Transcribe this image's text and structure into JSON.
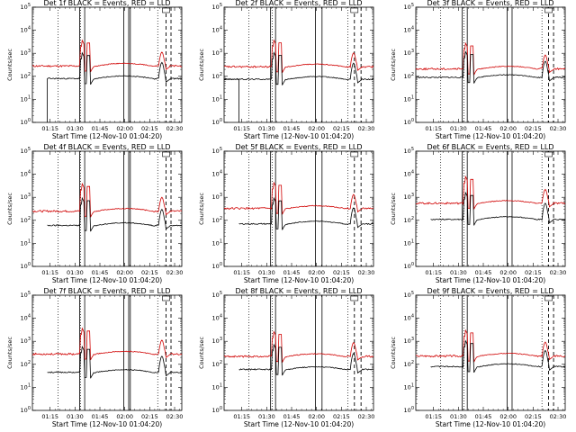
{
  "colors": {
    "events": "#000000",
    "lld": "#d00000",
    "axis": "#000000"
  },
  "shared": {
    "ylabel": "Counts/sec",
    "xlabel": "Start Time (12-Nov-10 01:04:20)",
    "xticks": [
      "01:15",
      "01:30",
      "01:45",
      "02:00",
      "02:15",
      "02:30"
    ],
    "ytick_bases": [
      "10",
      "10",
      "10",
      "10",
      "10",
      "10"
    ],
    "ytick_exps": [
      "0",
      "1",
      "2",
      "3",
      "4",
      "5"
    ]
  },
  "chart_data": [
    {
      "type": "line",
      "title": "Det 1f BLACK = Events, RED = LLD",
      "xlabel": "Start Time (12-Nov-10 01:04:20)",
      "ylabel": "Counts/sec",
      "ylim": [
        1,
        100000
      ],
      "yscale": "log",
      "black_base": 80,
      "red_base": 280,
      "black_start_min": 9,
      "spike_scale": 1.0,
      "black_gap": true,
      "solid_lines_min": [
        28.5,
        31.5,
        55,
        58,
        59
      ],
      "dotted_lines_min": [
        15.5,
        29,
        75.5
      ],
      "dashed_lines_min": [
        80.5,
        83.5
      ],
      "series": [
        {
          "name": "Events",
          "color": "#000000"
        },
        {
          "name": "LLD",
          "color": "#d00000"
        }
      ]
    },
    {
      "type": "line",
      "title": "Det 2f BLACK = Events, RED = LLD",
      "xlabel": "Start Time (12-Nov-10 01:04:20)",
      "ylabel": "Counts/sec",
      "ylim": [
        1,
        100000
      ],
      "yscale": "log",
      "black_base": 75,
      "red_base": 260,
      "black_start_min": 0,
      "spike_scale": 1.1,
      "black_gap": true,
      "solid_lines_min": [
        28,
        31,
        55,
        59
      ],
      "dotted_lines_min": [
        15,
        29,
        74.5
      ],
      "dashed_lines_min": [
        78.5,
        82.5
      ],
      "series": [
        {
          "name": "Events",
          "color": "#000000"
        },
        {
          "name": "LLD",
          "color": "#d00000"
        }
      ]
    },
    {
      "type": "line",
      "title": "Det 3f BLACK = Events, RED = LLD",
      "xlabel": "Start Time (12-Nov-10 01:04:20)",
      "ylabel": "Counts/sec",
      "ylim": [
        1,
        100000
      ],
      "yscale": "log",
      "black_base": 90,
      "red_base": 210,
      "black_start_min": 0,
      "spike_scale": 1.0,
      "black_gap": false,
      "solid_lines_min": [
        28,
        31,
        55,
        58
      ],
      "dotted_lines_min": [
        15,
        29,
        76
      ],
      "dashed_lines_min": [
        80,
        83
      ],
      "series": [
        {
          "name": "Events",
          "color": "#000000"
        },
        {
          "name": "LLD",
          "color": "#d00000"
        }
      ]
    },
    {
      "type": "line",
      "title": "Det 4f BLACK = Events, RED = LLD",
      "xlabel": "Start Time (12-Nov-10 01:04:20)",
      "ylabel": "Counts/sec",
      "ylim": [
        1,
        100000
      ],
      "yscale": "log",
      "black_base": 60,
      "red_base": 250,
      "black_start_min": 9,
      "spike_scale": 1.2,
      "black_gap": false,
      "solid_lines_min": [
        28.5,
        31.5,
        55,
        58,
        59
      ],
      "dotted_lines_min": [
        15.5,
        29,
        75.5
      ],
      "dashed_lines_min": [
        80.5,
        83.5
      ],
      "series": [
        {
          "name": "Events",
          "color": "#000000"
        },
        {
          "name": "LLD",
          "color": "#d00000"
        }
      ]
    },
    {
      "type": "line",
      "title": "Det 5f BLACK = Events, RED = LLD",
      "xlabel": "Start Time (12-Nov-10 01:04:20)",
      "ylabel": "Counts/sec",
      "ylim": [
        1,
        100000
      ],
      "yscale": "log",
      "black_base": 70,
      "red_base": 330,
      "black_start_min": 9,
      "spike_scale": 1.0,
      "black_gap": false,
      "solid_lines_min": [
        28,
        31,
        55,
        59
      ],
      "dotted_lines_min": [
        15,
        29,
        74.5
      ],
      "dashed_lines_min": [
        78.5,
        82.5
      ],
      "series": [
        {
          "name": "Events",
          "color": "#000000"
        },
        {
          "name": "LLD",
          "color": "#d00000"
        }
      ]
    },
    {
      "type": "line",
      "title": "Det 6f BLACK = Events, RED = LLD",
      "xlabel": "Start Time (12-Nov-10 01:04:20)",
      "ylabel": "Counts/sec",
      "ylim": [
        1,
        100000
      ],
      "yscale": "log",
      "black_base": 110,
      "red_base": 550,
      "black_start_min": 9,
      "spike_scale": 1.1,
      "black_gap": false,
      "solid_lines_min": [
        28,
        31,
        55,
        58
      ],
      "dotted_lines_min": [
        15,
        29,
        76
      ],
      "dashed_lines_min": [
        80,
        83
      ],
      "series": [
        {
          "name": "Events",
          "color": "#000000"
        },
        {
          "name": "LLD",
          "color": "#d00000"
        }
      ]
    },
    {
      "type": "line",
      "title": "Det 7f BLACK = Events, RED = LLD",
      "xlabel": "Start Time (12-Nov-10 01:04:20)",
      "ylabel": "Counts/sec",
      "ylim": [
        1,
        100000
      ],
      "yscale": "log",
      "black_base": 45,
      "red_base": 280,
      "black_start_min": 9,
      "spike_scale": 1.0,
      "black_gap": false,
      "solid_lines_min": [
        28.5,
        31.5,
        55,
        58,
        59
      ],
      "dotted_lines_min": [
        15.5,
        29,
        75.5
      ],
      "dashed_lines_min": [
        80.5,
        83.5
      ],
      "series": [
        {
          "name": "Events",
          "color": "#000000"
        },
        {
          "name": "LLD",
          "color": "#d00000"
        }
      ]
    },
    {
      "type": "line",
      "title": "Det 8f BLACK = Events, RED = LLD",
      "xlabel": "Start Time (12-Nov-10 01:04:20)",
      "ylabel": "Counts/sec",
      "ylim": [
        1,
        100000
      ],
      "yscale": "log",
      "black_base": 60,
      "red_base": 220,
      "black_start_min": 9,
      "spike_scale": 0.9,
      "black_gap": false,
      "solid_lines_min": [
        28,
        31,
        55,
        59
      ],
      "dotted_lines_min": [
        15,
        29,
        74.5
      ],
      "dashed_lines_min": [
        78.5,
        82.5
      ],
      "series": [
        {
          "name": "Events",
          "color": "#000000"
        },
        {
          "name": "LLD",
          "color": "#d00000"
        }
      ]
    },
    {
      "type": "line",
      "title": "Det 9f BLACK = Events, RED = LLD",
      "xlabel": "Start Time (12-Nov-10 01:04:20)",
      "ylabel": "Counts/sec",
      "ylim": [
        1,
        100000
      ],
      "yscale": "log",
      "black_base": 80,
      "red_base": 230,
      "black_start_min": 9,
      "spike_scale": 1.0,
      "black_gap": false,
      "solid_lines_min": [
        28,
        31,
        55,
        58
      ],
      "dotted_lines_min": [
        15,
        29,
        76
      ],
      "dashed_lines_min": [
        80,
        83
      ],
      "series": [
        {
          "name": "Events",
          "color": "#000000"
        },
        {
          "name": "LLD",
          "color": "#d00000"
        }
      ]
    }
  ]
}
